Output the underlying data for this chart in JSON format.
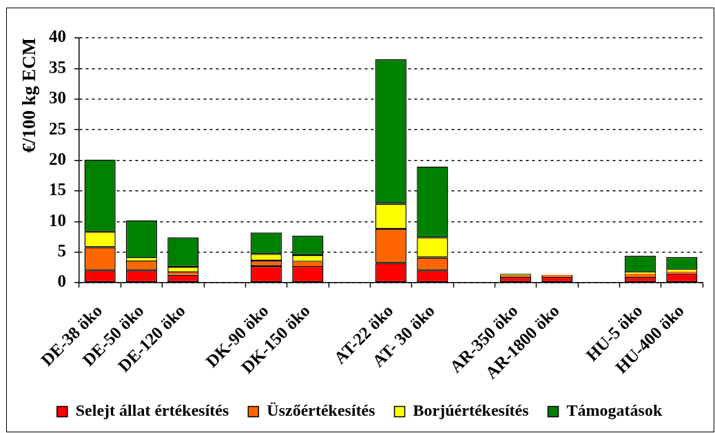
{
  "chart_data": {
    "type": "bar",
    "stacked": true,
    "ylabel": "€/100 kg ECM",
    "categories": [
      "DE-38 öko",
      "DE-50 öko",
      "DE-120 öko",
      null,
      "DK-90 öko",
      "DK-150 öko",
      null,
      "AT-22 öko",
      "AT- 30 öko",
      null,
      "AR-350 öko",
      "AR-1800 öko",
      null,
      "HU-5 öko",
      "HU-400 öko"
    ],
    "series": [
      {
        "name": "Selejt állat értékesítés",
        "color": "#ff0000",
        "values": [
          2.0,
          2.0,
          1.3,
          null,
          2.7,
          2.7,
          null,
          3.2,
          2.0,
          null,
          0.9,
          0.9,
          null,
          0.9,
          1.5
        ]
      },
      {
        "name": "Üszőértékesítés",
        "color": "#ff6600",
        "values": [
          3.8,
          1.6,
          0.4,
          null,
          0.9,
          0.7,
          null,
          5.6,
          2.1,
          null,
          0.4,
          0.4,
          null,
          0.6,
          0.3
        ]
      },
      {
        "name": "Borjúértékesítés",
        "color": "#ffff00",
        "values": [
          2.5,
          0.4,
          0.9,
          null,
          1.1,
          1.1,
          null,
          4.1,
          3.3,
          null,
          null,
          null,
          null,
          0.2,
          0.3
        ]
      },
      {
        "name": "Támogatások",
        "color": "#008000",
        "values": [
          11.8,
          6.2,
          4.8,
          null,
          3.5,
          3.2,
          null,
          23.6,
          11.6,
          null,
          0.2,
          null,
          null,
          2.7,
          2.1
        ]
      }
    ],
    "ylim": [
      0,
      40
    ],
    "yticks": [
      0,
      5,
      10,
      15,
      20,
      25,
      30,
      35,
      40
    ],
    "grid": "y",
    "legend": "bottom"
  }
}
